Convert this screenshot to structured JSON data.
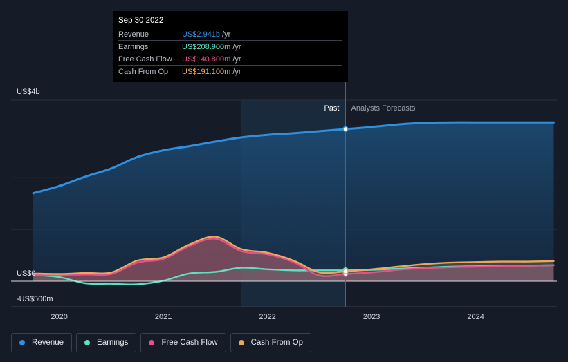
{
  "tooltip": {
    "date": "Sep 30 2022",
    "rows": [
      {
        "label": "Revenue",
        "value": "US$2.941b",
        "unit": "/yr",
        "color": "#2f8fe0"
      },
      {
        "label": "Earnings",
        "value": "US$208.900m",
        "unit": "/yr",
        "color": "#5ee0c2"
      },
      {
        "label": "Free Cash Flow",
        "value": "US$140.800m",
        "unit": "/yr",
        "color": "#e8508c"
      },
      {
        "label": "Cash From Op",
        "value": "US$191.100m",
        "unit": "/yr",
        "color": "#eaa95a"
      }
    ]
  },
  "labels": {
    "past": "Past",
    "forecast": "Analysts Forecasts"
  },
  "legend": [
    {
      "label": "Revenue",
      "color": "#2f8fe0"
    },
    {
      "label": "Earnings",
      "color": "#5ee0c2"
    },
    {
      "label": "Free Cash Flow",
      "color": "#e8508c"
    },
    {
      "label": "Cash From Op",
      "color": "#eaa95a"
    }
  ],
  "chart_data": {
    "type": "area",
    "ylabels": [
      {
        "text": "US$4b",
        "value": 3.5
      },
      {
        "text": "US$0",
        "value": 0
      },
      {
        "text": "-US$500m",
        "value": -0.5
      }
    ],
    "ylim": [
      -0.5,
      3.5
    ],
    "xlim": [
      2019.62,
      2024.78
    ],
    "xticks": [
      {
        "label": "2020",
        "value": 2020
      },
      {
        "label": "2021",
        "value": 2021
      },
      {
        "label": "2022",
        "value": 2022
      },
      {
        "label": "2023",
        "value": 2023
      },
      {
        "label": "2024",
        "value": 2024
      }
    ],
    "past_start": 2021.75,
    "divider": 2022.75,
    "series": [
      {
        "name": "Revenue",
        "color": "#2f8fe0",
        "points": [
          [
            2019.75,
            1.7
          ],
          [
            2020.0,
            1.84
          ],
          [
            2020.25,
            2.02
          ],
          [
            2020.5,
            2.18
          ],
          [
            2020.75,
            2.4
          ],
          [
            2021.0,
            2.53
          ],
          [
            2021.25,
            2.61
          ],
          [
            2021.5,
            2.7
          ],
          [
            2021.75,
            2.78
          ],
          [
            2022.0,
            2.83
          ],
          [
            2022.25,
            2.86
          ],
          [
            2022.5,
            2.9
          ],
          [
            2022.75,
            2.94
          ],
          [
            2023.0,
            2.98
          ],
          [
            2023.25,
            3.03
          ],
          [
            2023.5,
            3.06
          ],
          [
            2023.75,
            3.07
          ],
          [
            2024.0,
            3.07
          ],
          [
            2024.25,
            3.07
          ],
          [
            2024.5,
            3.07
          ],
          [
            2024.75,
            3.07
          ]
        ]
      },
      {
        "name": "Earnings",
        "color": "#5ee0c2",
        "points": [
          [
            2019.75,
            0.12
          ],
          [
            2020.0,
            0.08
          ],
          [
            2020.25,
            -0.04
          ],
          [
            2020.5,
            -0.05
          ],
          [
            2020.75,
            -0.06
          ],
          [
            2021.0,
            0.01
          ],
          [
            2021.25,
            0.15
          ],
          [
            2021.5,
            0.18
          ],
          [
            2021.75,
            0.26
          ],
          [
            2022.0,
            0.23
          ],
          [
            2022.25,
            0.21
          ],
          [
            2022.5,
            0.21
          ],
          [
            2022.75,
            0.21
          ],
          [
            2023.0,
            0.22
          ],
          [
            2023.25,
            0.24
          ],
          [
            2023.5,
            0.26
          ],
          [
            2023.75,
            0.28
          ],
          [
            2024.0,
            0.29
          ],
          [
            2024.25,
            0.3
          ],
          [
            2024.5,
            0.3
          ],
          [
            2024.75,
            0.31
          ]
        ]
      },
      {
        "name": "Free Cash Flow",
        "color": "#e8508c",
        "points": [
          [
            2019.75,
            0.12
          ],
          [
            2020.0,
            0.12
          ],
          [
            2020.25,
            0.13
          ],
          [
            2020.5,
            0.14
          ],
          [
            2020.75,
            0.36
          ],
          [
            2021.0,
            0.43
          ],
          [
            2021.25,
            0.68
          ],
          [
            2021.5,
            0.82
          ],
          [
            2021.75,
            0.58
          ],
          [
            2022.0,
            0.52
          ],
          [
            2022.25,
            0.37
          ],
          [
            2022.5,
            0.11
          ],
          [
            2022.75,
            0.14
          ],
          [
            2023.0,
            0.17
          ],
          [
            2023.25,
            0.22
          ],
          [
            2023.5,
            0.25
          ],
          [
            2023.75,
            0.27
          ],
          [
            2024.0,
            0.28
          ],
          [
            2024.25,
            0.29
          ],
          [
            2024.5,
            0.3
          ],
          [
            2024.75,
            0.31
          ]
        ]
      },
      {
        "name": "Cash From Op",
        "color": "#eaa95a",
        "points": [
          [
            2019.75,
            0.15
          ],
          [
            2020.0,
            0.14
          ],
          [
            2020.25,
            0.16
          ],
          [
            2020.5,
            0.17
          ],
          [
            2020.75,
            0.4
          ],
          [
            2021.0,
            0.46
          ],
          [
            2021.25,
            0.71
          ],
          [
            2021.5,
            0.86
          ],
          [
            2021.75,
            0.62
          ],
          [
            2022.0,
            0.55
          ],
          [
            2022.25,
            0.4
          ],
          [
            2022.5,
            0.17
          ],
          [
            2022.75,
            0.19
          ],
          [
            2023.0,
            0.23
          ],
          [
            2023.25,
            0.28
          ],
          [
            2023.5,
            0.33
          ],
          [
            2023.75,
            0.36
          ],
          [
            2024.0,
            0.37
          ],
          [
            2024.25,
            0.38
          ],
          [
            2024.5,
            0.38
          ],
          [
            2024.75,
            0.39
          ]
        ]
      }
    ]
  }
}
